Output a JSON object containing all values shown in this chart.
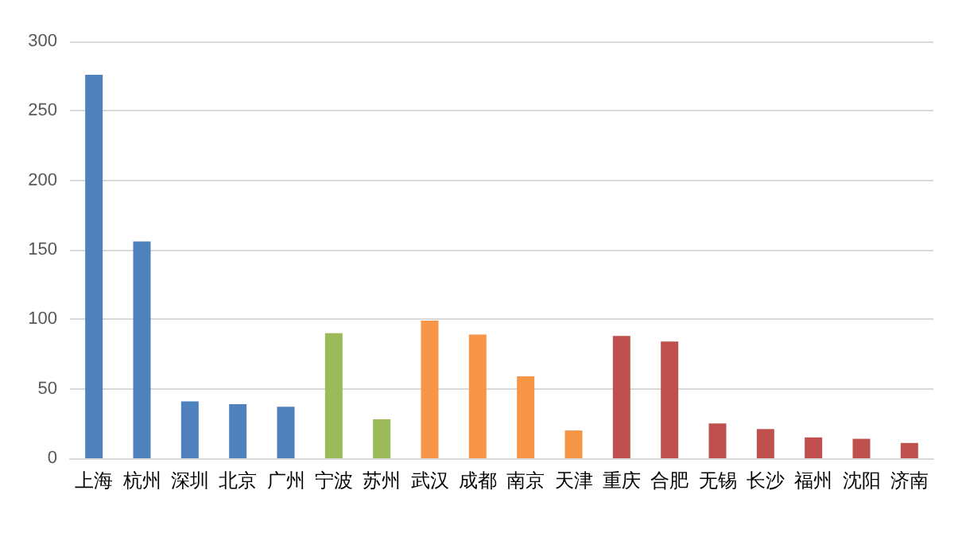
{
  "chart_data": {
    "type": "bar",
    "categories": [
      "上海",
      "杭州",
      "深圳",
      "北京",
      "广州",
      "宁波",
      "苏州",
      "武汉",
      "成都",
      "南京",
      "天津",
      "重庆",
      "合肥",
      "无锡",
      "长沙",
      "福州",
      "沈阳",
      "济南"
    ],
    "values": [
      276,
      156,
      41,
      39,
      37,
      90,
      28,
      99,
      89,
      59,
      20,
      88,
      84,
      25,
      21,
      15,
      14,
      11
    ],
    "colors": [
      "#4f81bd",
      "#4f81bd",
      "#4f81bd",
      "#4f81bd",
      "#4f81bd",
      "#9bbb59",
      "#9bbb59",
      "#f79646",
      "#f79646",
      "#f79646",
      "#f79646",
      "#c0504d",
      "#c0504d",
      "#c0504d",
      "#c0504d",
      "#c0504d",
      "#c0504d",
      "#c0504d"
    ],
    "ylim": [
      0,
      300
    ],
    "yticks": [
      0,
      50,
      100,
      150,
      200,
      250,
      300
    ],
    "grid": "y"
  }
}
